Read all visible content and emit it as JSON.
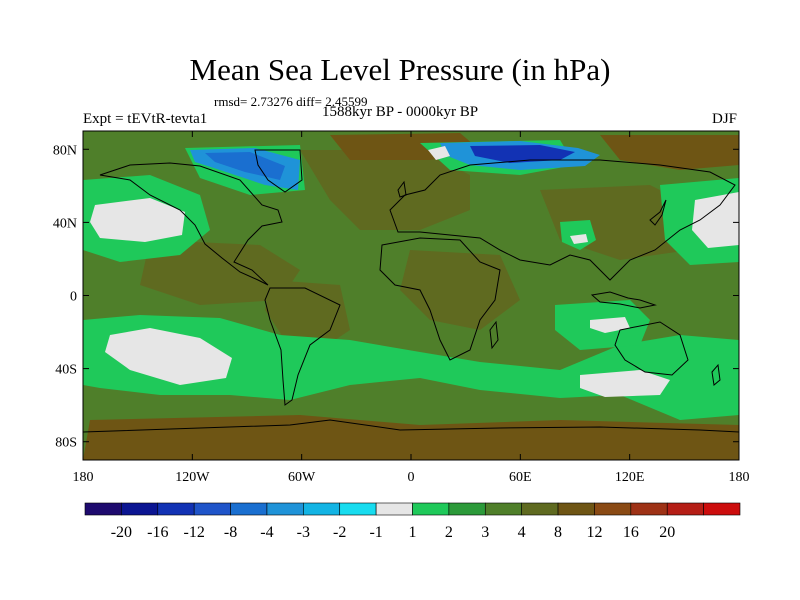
{
  "title": "Mean Sea Level Pressure (in hPa)",
  "stats": "rmsd= 2.73276 diff= 2.45599",
  "experiment": "Expt = tEVtR-tevta1",
  "period": "1588kyr BP - 0000kyr BP",
  "season": "DJF",
  "map": {
    "projection": "cylindrical-equidistant",
    "lon_range": [
      -180,
      180
    ],
    "lat_range": [
      -90,
      90
    ],
    "background_level_color": "#4f7f2a",
    "lat_ticks": [
      {
        "value": 80,
        "label": "80N"
      },
      {
        "value": 40,
        "label": "40N"
      },
      {
        "value": 0,
        "label": "0"
      },
      {
        "value": -40,
        "label": "40S"
      },
      {
        "value": -80,
        "label": "80S"
      }
    ],
    "lon_ticks": [
      {
        "value": -180,
        "label": "180"
      },
      {
        "value": -120,
        "label": "120W"
      },
      {
        "value": -60,
        "label": "60W"
      },
      {
        "value": 0,
        "label": "0"
      },
      {
        "value": 60,
        "label": "60E"
      },
      {
        "value": 120,
        "label": "120E"
      },
      {
        "value": 180,
        "label": "180"
      }
    ]
  },
  "colorbar": {
    "colors": [
      "#1e0a6e",
      "#0b1592",
      "#1232b4",
      "#1f54c9",
      "#1a6fd0",
      "#1f93d8",
      "#13b4e4",
      "#18dcef",
      "#e6e6e6",
      "#1fc95a",
      "#2c9a3a",
      "#4f7f2a",
      "#5f6a20",
      "#6e5514",
      "#8a4a14",
      "#9e3216",
      "#b51e16",
      "#cc0d0d"
    ],
    "labels": [
      "-20",
      "-16",
      "-12",
      "-8",
      "-4",
      "-3",
      "-2",
      "-1",
      "1",
      "2",
      "3",
      "4",
      "8",
      "12",
      "16",
      "20"
    ]
  }
}
